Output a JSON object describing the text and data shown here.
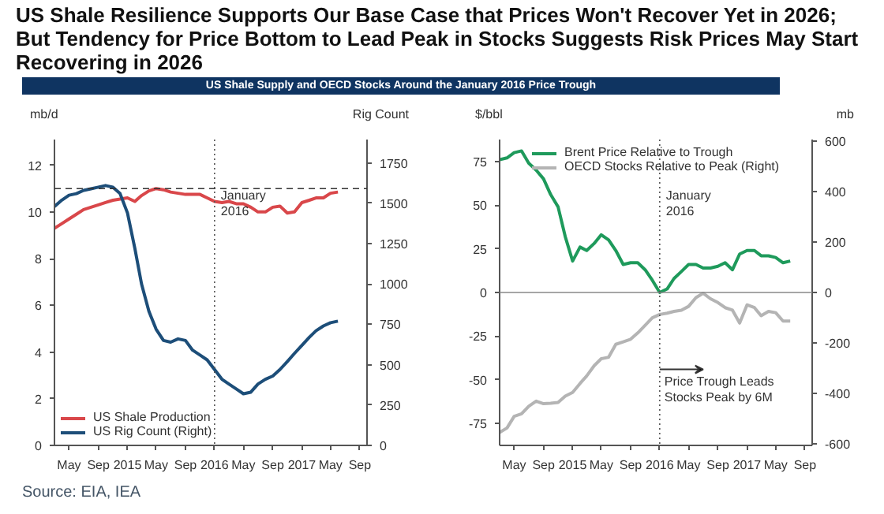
{
  "chart_data": [
    {
      "type": "line",
      "title": "US Shale Resilience Supports Our Base Case that Prices Won't Recover Yet in 2026; But Tendency for Price Bottom to Lead Peak in Stocks Suggests Risk Prices May Start Recovering in 2026",
      "subtitle": "US Shale Supply and OECD Stocks Around the January 2016 Price Trough",
      "ylabel": "mb/d",
      "y2label": "Rig Count",
      "x": [
        "2014-03",
        "2014-04",
        "2014-05",
        "2014-06",
        "2014-07",
        "2014-08",
        "2014-09",
        "2014-10",
        "2014-11",
        "2014-12",
        "2015-01",
        "2015-02",
        "2015-03",
        "2015-04",
        "2015-05",
        "2015-06",
        "2015-07",
        "2015-08",
        "2015-09",
        "2015-10",
        "2015-11",
        "2015-12",
        "2016-01",
        "2016-02",
        "2016-03",
        "2016-04",
        "2016-05",
        "2016-06",
        "2016-07",
        "2016-08",
        "2016-09",
        "2016-10",
        "2016-11",
        "2016-12",
        "2017-01",
        "2017-02",
        "2017-03",
        "2017-04",
        "2017-05",
        "2017-06"
      ],
      "series": [
        {
          "name": "US Shale Production",
          "color": "#d9474a",
          "values": [
            9.3,
            9.5,
            9.7,
            9.9,
            10.1,
            10.2,
            10.3,
            10.4,
            10.5,
            10.55,
            10.6,
            10.45,
            10.7,
            10.9,
            11.0,
            10.95,
            10.85,
            10.8,
            10.75,
            10.75,
            10.75,
            10.6,
            10.45,
            10.4,
            10.45,
            10.35,
            10.35,
            10.2,
            10.0,
            10.0,
            10.2,
            10.25,
            9.95,
            10.0,
            10.4,
            10.5,
            10.6,
            10.6,
            10.8,
            10.85
          ]
        },
        {
          "name": "US Rig Count (Right)",
          "color": "#1d4e79",
          "axis": "y2",
          "values": [
            1480,
            1520,
            1550,
            1560,
            1580,
            1590,
            1600,
            1610,
            1600,
            1560,
            1440,
            1220,
            1000,
            830,
            720,
            650,
            640,
            660,
            650,
            590,
            560,
            530,
            470,
            410,
            380,
            350,
            320,
            330,
            380,
            410,
            430,
            470,
            520,
            570,
            620,
            670,
            710,
            740,
            760,
            770
          ]
        }
      ],
      "xlim": [
        "2014-03",
        "2017-10"
      ],
      "xticks": [
        {
          "value": "2014-05",
          "label": "May"
        },
        {
          "value": "2014-09",
          "label": "Sep"
        },
        {
          "value": "2015-01",
          "label": "2015"
        },
        {
          "value": "2015-05",
          "label": "May"
        },
        {
          "value": "2015-09",
          "label": "Sep"
        },
        {
          "value": "2016-01",
          "label": "2016"
        },
        {
          "value": "2016-05",
          "label": "May"
        },
        {
          "value": "2016-09",
          "label": "Sep"
        },
        {
          "value": "2017-01",
          "label": "2017"
        },
        {
          "value": "2017-05",
          "label": "May"
        },
        {
          "value": "2017-09",
          "label": "Sep"
        }
      ],
      "ylim": [
        0,
        13.1
      ],
      "yticks": [
        0,
        2,
        4,
        6,
        8,
        10,
        12
      ],
      "y2lim": [
        0,
        1895
      ],
      "y2ticks": [
        0,
        250,
        500,
        750,
        1000,
        1250,
        1500,
        1750
      ],
      "ref_lines": [
        {
          "axis": "y",
          "value": 11,
          "line_style": "dashed",
          "color": "#333333"
        },
        {
          "axis": "x",
          "value": "2016-01",
          "label": "January 2016",
          "line_style": "dotted",
          "color": "#555555"
        }
      ],
      "legend": "bottom left",
      "line_style": "solid",
      "marker": "none",
      "grid": false
    },
    {
      "type": "line",
      "ylabel": "$/bbl",
      "y2label": "mb",
      "x": [
        "2014-03",
        "2014-04",
        "2014-05",
        "2014-06",
        "2014-07",
        "2014-08",
        "2014-09",
        "2014-10",
        "2014-11",
        "2014-12",
        "2015-01",
        "2015-02",
        "2015-03",
        "2015-04",
        "2015-05",
        "2015-06",
        "2015-07",
        "2015-08",
        "2015-09",
        "2015-10",
        "2015-11",
        "2015-12",
        "2016-01",
        "2016-02",
        "2016-03",
        "2016-04",
        "2016-05",
        "2016-06",
        "2016-07",
        "2016-08",
        "2016-09",
        "2016-10",
        "2016-11",
        "2016-12",
        "2017-01",
        "2017-02",
        "2017-03",
        "2017-04",
        "2017-05",
        "2017-06",
        "2017-07"
      ],
      "series": [
        {
          "name": "Brent Price Relative to Trough",
          "color": "#1e9a5b",
          "values": [
            76,
            77,
            80,
            81,
            74,
            70,
            65,
            56,
            49,
            32,
            18,
            26,
            24,
            28,
            33,
            30,
            24,
            16,
            17,
            17,
            13,
            7,
            0,
            2,
            8,
            12,
            16,
            16,
            14,
            14,
            15,
            17,
            13,
            22,
            24,
            24,
            21,
            21,
            20,
            17,
            18
          ]
        },
        {
          "name": "OECD Stocks Relative to Peak (Right)",
          "color": "#b4b4b4",
          "axis": "y2",
          "values": [
            -554,
            -536,
            -490,
            -480,
            -450,
            -430,
            -440,
            -438,
            -435,
            -410,
            -395,
            -360,
            -330,
            -290,
            -262,
            -256,
            -205,
            -195,
            -185,
            -160,
            -130,
            -100,
            -87,
            -82,
            -75,
            -70,
            -55,
            -20,
            -3,
            -25,
            -40,
            -60,
            -70,
            -121,
            -49,
            -60,
            -92,
            -75,
            -80,
            -113,
            -113
          ]
        }
      ],
      "xlim": [
        "2014-03",
        "2017-10"
      ],
      "xticks": [
        {
          "value": "2014-05",
          "label": "May"
        },
        {
          "value": "2014-09",
          "label": "Sep"
        },
        {
          "value": "2015-01",
          "label": "2015"
        },
        {
          "value": "2015-05",
          "label": "May"
        },
        {
          "value": "2015-09",
          "label": "Sep"
        },
        {
          "value": "2016-01",
          "label": "2016"
        },
        {
          "value": "2016-05",
          "label": "May"
        },
        {
          "value": "2016-09",
          "label": "Sep"
        },
        {
          "value": "2017-01",
          "label": "2017"
        },
        {
          "value": "2017-05",
          "label": "May"
        },
        {
          "value": "2017-09",
          "label": "Sep"
        }
      ],
      "ylim": [
        -87.5,
        87.5
      ],
      "yticks": [
        -75,
        -50,
        -25,
        0,
        25,
        50,
        75
      ],
      "y2lim": [
        -605,
        605
      ],
      "y2ticks": [
        -600,
        -400,
        -200,
        0,
        200,
        400,
        600
      ],
      "ref_lines": [
        {
          "axis": "y",
          "value": 0,
          "line_style": "solid",
          "color": "#888888"
        },
        {
          "axis": "x",
          "value": "2016-01",
          "label": "January 2016",
          "line_style": "dotted",
          "color": "#555555"
        }
      ],
      "annotations": [
        {
          "text": "Price Trough Leads Stocks Peak by 6M",
          "x": "2016-01",
          "y": -44
        },
        "Source: EIA, IEA"
      ],
      "legend": "top",
      "line_style": "solid",
      "marker": "none",
      "grid": false
    }
  ]
}
